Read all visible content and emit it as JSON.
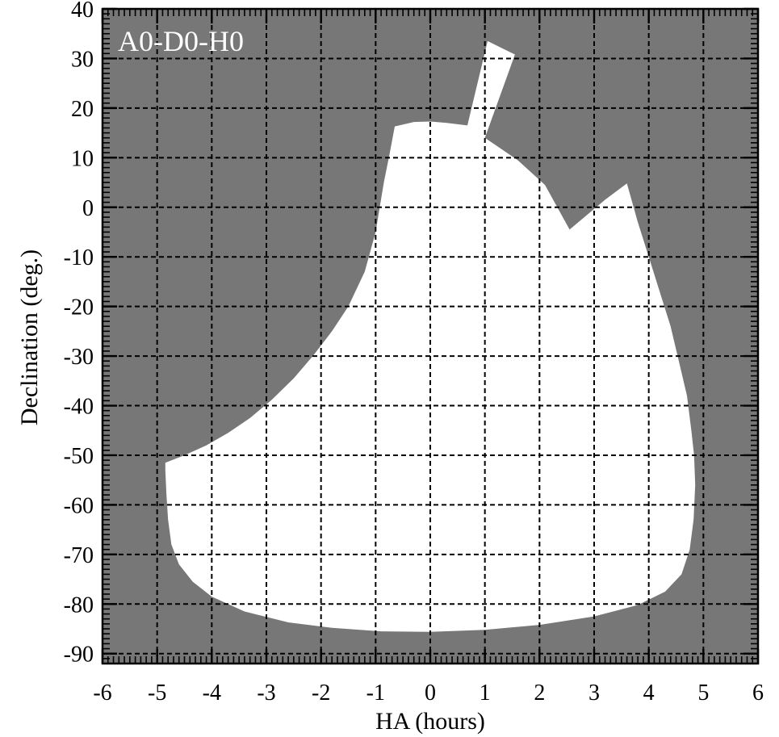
{
  "chart_data": {
    "type": "area",
    "title": "",
    "panel_label": "A0-D0-H0",
    "xlabel": "HA (hours)",
    "ylabel": "Declination (deg.)",
    "xlim": [
      -6,
      6
    ],
    "ylim": [
      -92,
      40
    ],
    "x_ticks": [
      -6,
      -5,
      -4,
      -3,
      -2,
      -1,
      0,
      1,
      2,
      3,
      4,
      5,
      6
    ],
    "y_ticks": [
      40,
      30,
      20,
      10,
      0,
      -10,
      -20,
      -30,
      -40,
      -50,
      -60,
      -70,
      -80,
      -90
    ],
    "x_minor_step": 0.1,
    "y_minor_step": 1,
    "grid": true,
    "colors": {
      "unobservable": "#777777",
      "observable": "#ffffff",
      "grid": "#000000",
      "panel_label": "#ffffff"
    },
    "observable_region": [
      [
        -4.85,
        -51.5
      ],
      [
        -4.85,
        -53
      ],
      [
        -4.83,
        -58
      ],
      [
        -4.8,
        -63
      ],
      [
        -4.74,
        -68
      ],
      [
        -4.6,
        -72
      ],
      [
        -4.35,
        -75.5
      ],
      [
        -4.0,
        -78.5
      ],
      [
        -3.4,
        -81.5
      ],
      [
        -2.6,
        -83.7
      ],
      [
        -1.8,
        -84.8
      ],
      [
        -0.9,
        -85.5
      ],
      [
        0.0,
        -85.6
      ],
      [
        1.0,
        -85.2
      ],
      [
        2.0,
        -84.2
      ],
      [
        3.0,
        -82.5
      ],
      [
        3.8,
        -80.2
      ],
      [
        4.3,
        -77.5
      ],
      [
        4.6,
        -74
      ],
      [
        4.75,
        -69
      ],
      [
        4.82,
        -63
      ],
      [
        4.85,
        -56
      ],
      [
        4.83,
        -50
      ],
      [
        4.78,
        -45
      ],
      [
        4.7,
        -38
      ],
      [
        4.55,
        -31
      ],
      [
        4.4,
        -24
      ],
      [
        4.2,
        -17
      ],
      [
        4.0,
        -10
      ],
      [
        3.8,
        -3
      ],
      [
        3.6,
        4.8
      ],
      [
        3.2,
        1.5
      ],
      [
        2.55,
        -4.5
      ],
      [
        2.1,
        4.5
      ],
      [
        1.6,
        9.5
      ],
      [
        1.0,
        14.0
      ],
      [
        1.55,
        30.8
      ],
      [
        1.05,
        33.5
      ],
      [
        0.68,
        16.5
      ],
      [
        0.3,
        17.0
      ],
      [
        0.0,
        17.3
      ],
      [
        -0.3,
        17.2
      ],
      [
        -0.65,
        16.3
      ],
      [
        -0.75,
        10.5
      ],
      [
        -0.85,
        5.0
      ],
      [
        -1.0,
        -5.0
      ],
      [
        -1.2,
        -13.0
      ],
      [
        -1.5,
        -20.0
      ],
      [
        -1.8,
        -25.0
      ],
      [
        -2.15,
        -30.0
      ],
      [
        -2.5,
        -34.5
      ],
      [
        -2.9,
        -38.8
      ],
      [
        -3.3,
        -42.5
      ],
      [
        -3.7,
        -45.5
      ],
      [
        -4.1,
        -48.0
      ],
      [
        -4.5,
        -50.0
      ],
      [
        -4.85,
        -51.5
      ]
    ]
  }
}
